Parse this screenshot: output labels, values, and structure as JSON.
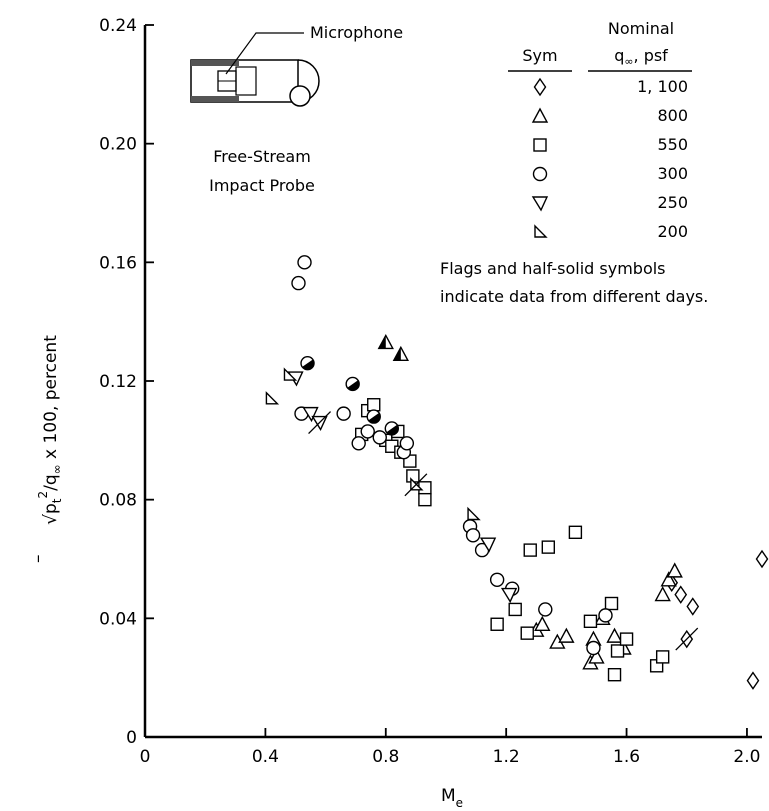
{
  "chart_data": {
    "type": "scatter",
    "xlabel": "M",
    "xlabel_sub": "e",
    "ylabel_pre": "√",
    "ylabel_main": "p",
    "ylabel_bar": "–",
    "ylabel_sub": "t",
    "ylabel_sup": "2",
    "ylabel_rest": "/q",
    "ylabel_sub2": "∞",
    "ylabel_end": " x 100, percent",
    "xlim": [
      0,
      2.05
    ],
    "ylim": [
      0,
      0.24
    ],
    "x_ticks": [
      "0",
      "0.4",
      "0.8",
      "1.2",
      "1.6",
      "2.0"
    ],
    "x_tick_values": [
      0,
      0.4,
      0.8,
      1.2,
      1.6,
      2.0
    ],
    "y_ticks": [
      "0",
      "0.04",
      "0.08",
      "0.12",
      "0.16",
      "0.20",
      "0.24"
    ],
    "y_tick_values": [
      0,
      0.04,
      0.08,
      0.12,
      0.16,
      0.2,
      0.24
    ],
    "inset": {
      "microphone_label": "Microphone",
      "probe_label_line1": "Free-Stream",
      "probe_label_line2": "Impact Probe"
    },
    "legend": {
      "col1_header": "Sym",
      "col2_header_line1": "Nominal",
      "col2_header_line2": "q",
      "col2_header_sub": "∞",
      "col2_header_unit": ", psf"
    },
    "note_line1": "Flags and half-solid symbols",
    "note_line2": "indicate data from different days.",
    "series": [
      {
        "name": "1, 100",
        "marker": "diamond",
        "points": [
          [
            1.75,
            0.052
          ],
          [
            1.78,
            0.048
          ],
          [
            1.82,
            0.044
          ],
          [
            1.8,
            0.033,
            "flag"
          ],
          [
            2.02,
            0.019
          ],
          [
            2.05,
            0.06
          ]
        ]
      },
      {
        "name": "800",
        "marker": "triangle",
        "points": [
          [
            0.8,
            0.133,
            "half"
          ],
          [
            0.85,
            0.129,
            "half"
          ],
          [
            1.3,
            0.036
          ],
          [
            1.32,
            0.038
          ],
          [
            1.37,
            0.032
          ],
          [
            1.4,
            0.034
          ],
          [
            1.48,
            0.025
          ],
          [
            1.49,
            0.033
          ],
          [
            1.5,
            0.027
          ],
          [
            1.52,
            0.04
          ],
          [
            1.56,
            0.034
          ],
          [
            1.59,
            0.03
          ],
          [
            1.72,
            0.048
          ],
          [
            1.74,
            0.053
          ],
          [
            1.76,
            0.056
          ]
        ]
      },
      {
        "name": "550",
        "marker": "square",
        "points": [
          [
            0.72,
            0.102
          ],
          [
            0.74,
            0.11
          ],
          [
            0.76,
            0.112
          ],
          [
            0.8,
            0.1
          ],
          [
            0.82,
            0.098
          ],
          [
            0.84,
            0.103
          ],
          [
            0.85,
            0.096
          ],
          [
            0.88,
            0.093
          ],
          [
            0.89,
            0.088
          ],
          [
            0.93,
            0.084
          ],
          [
            0.93,
            0.08
          ],
          [
            1.17,
            0.038
          ],
          [
            1.23,
            0.043
          ],
          [
            1.28,
            0.063
          ],
          [
            1.34,
            0.064
          ],
          [
            1.43,
            0.069
          ],
          [
            1.27,
            0.035
          ],
          [
            1.48,
            0.039
          ],
          [
            1.55,
            0.045
          ],
          [
            1.56,
            0.021
          ],
          [
            1.57,
            0.029
          ],
          [
            1.6,
            0.033
          ],
          [
            1.7,
            0.024
          ],
          [
            1.72,
            0.027
          ]
        ]
      },
      {
        "name": "300",
        "marker": "circle",
        "points": [
          [
            0.51,
            0.153
          ],
          [
            0.53,
            0.16
          ],
          [
            0.52,
            0.109
          ],
          [
            0.54,
            0.126,
            "half"
          ],
          [
            0.66,
            0.109
          ],
          [
            0.69,
            0.119,
            "half"
          ],
          [
            0.71,
            0.099
          ],
          [
            0.74,
            0.103
          ],
          [
            0.76,
            0.108,
            "half"
          ],
          [
            0.78,
            0.101
          ],
          [
            0.82,
            0.104,
            "half"
          ],
          [
            0.86,
            0.096
          ],
          [
            0.87,
            0.099
          ],
          [
            1.08,
            0.071
          ],
          [
            1.09,
            0.068
          ],
          [
            1.12,
            0.063
          ],
          [
            1.17,
            0.053
          ],
          [
            1.22,
            0.05
          ],
          [
            1.33,
            0.043
          ],
          [
            1.49,
            0.03
          ],
          [
            1.53,
            0.041
          ]
        ]
      },
      {
        "name": "250",
        "marker": "down-triangle",
        "points": [
          [
            0.5,
            0.121
          ],
          [
            0.55,
            0.109
          ],
          [
            0.58,
            0.106,
            "flag"
          ],
          [
            1.14,
            0.065
          ],
          [
            1.21,
            0.048
          ]
        ]
      },
      {
        "name": "200",
        "marker": "half-triangle",
        "points": [
          [
            0.42,
            0.114
          ],
          [
            0.48,
            0.122
          ],
          [
            1.09,
            0.075
          ],
          [
            0.9,
            0.085,
            "flag"
          ]
        ]
      }
    ]
  }
}
